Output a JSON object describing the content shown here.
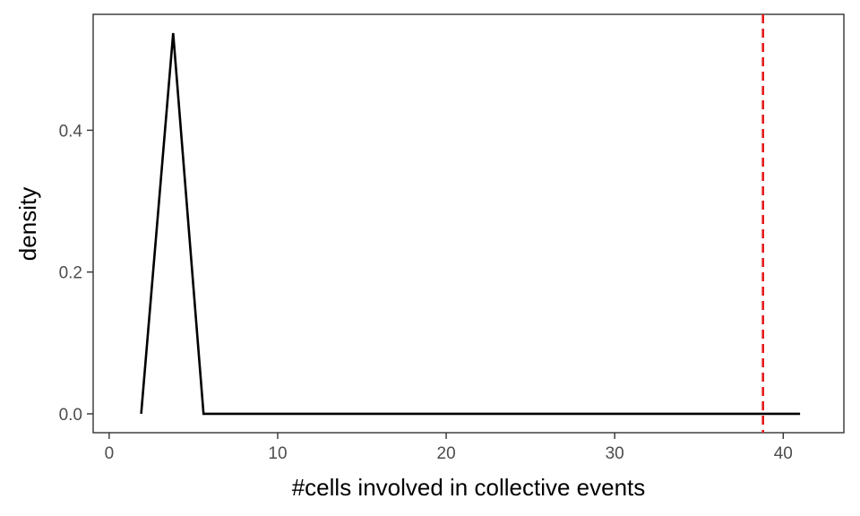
{
  "chart_data": {
    "type": "line",
    "xlabel": "#cells involved in collective events",
    "ylabel": "density",
    "xlim": [
      -0.95,
      43.6
    ],
    "ylim": [
      -0.0266,
      0.5635
    ],
    "x_ticks": [
      0,
      10,
      20,
      30,
      40
    ],
    "x_tick_labels": [
      "0",
      "10",
      "20",
      "30",
      "40"
    ],
    "y_ticks": [
      0.0,
      0.2,
      0.4
    ],
    "y_tick_labels": [
      "0.0",
      "0.2",
      "0.4"
    ],
    "grid": false,
    "legend": "none",
    "series": [
      {
        "x": [
          1.9,
          3.8,
          5.6,
          41.0
        ],
        "y": [
          0.0,
          0.537,
          0.0,
          0.0
        ],
        "color": "#000000"
      }
    ],
    "reference_line": {
      "x": 38.8,
      "color": "#e41a1c",
      "style": "dashed"
    }
  }
}
